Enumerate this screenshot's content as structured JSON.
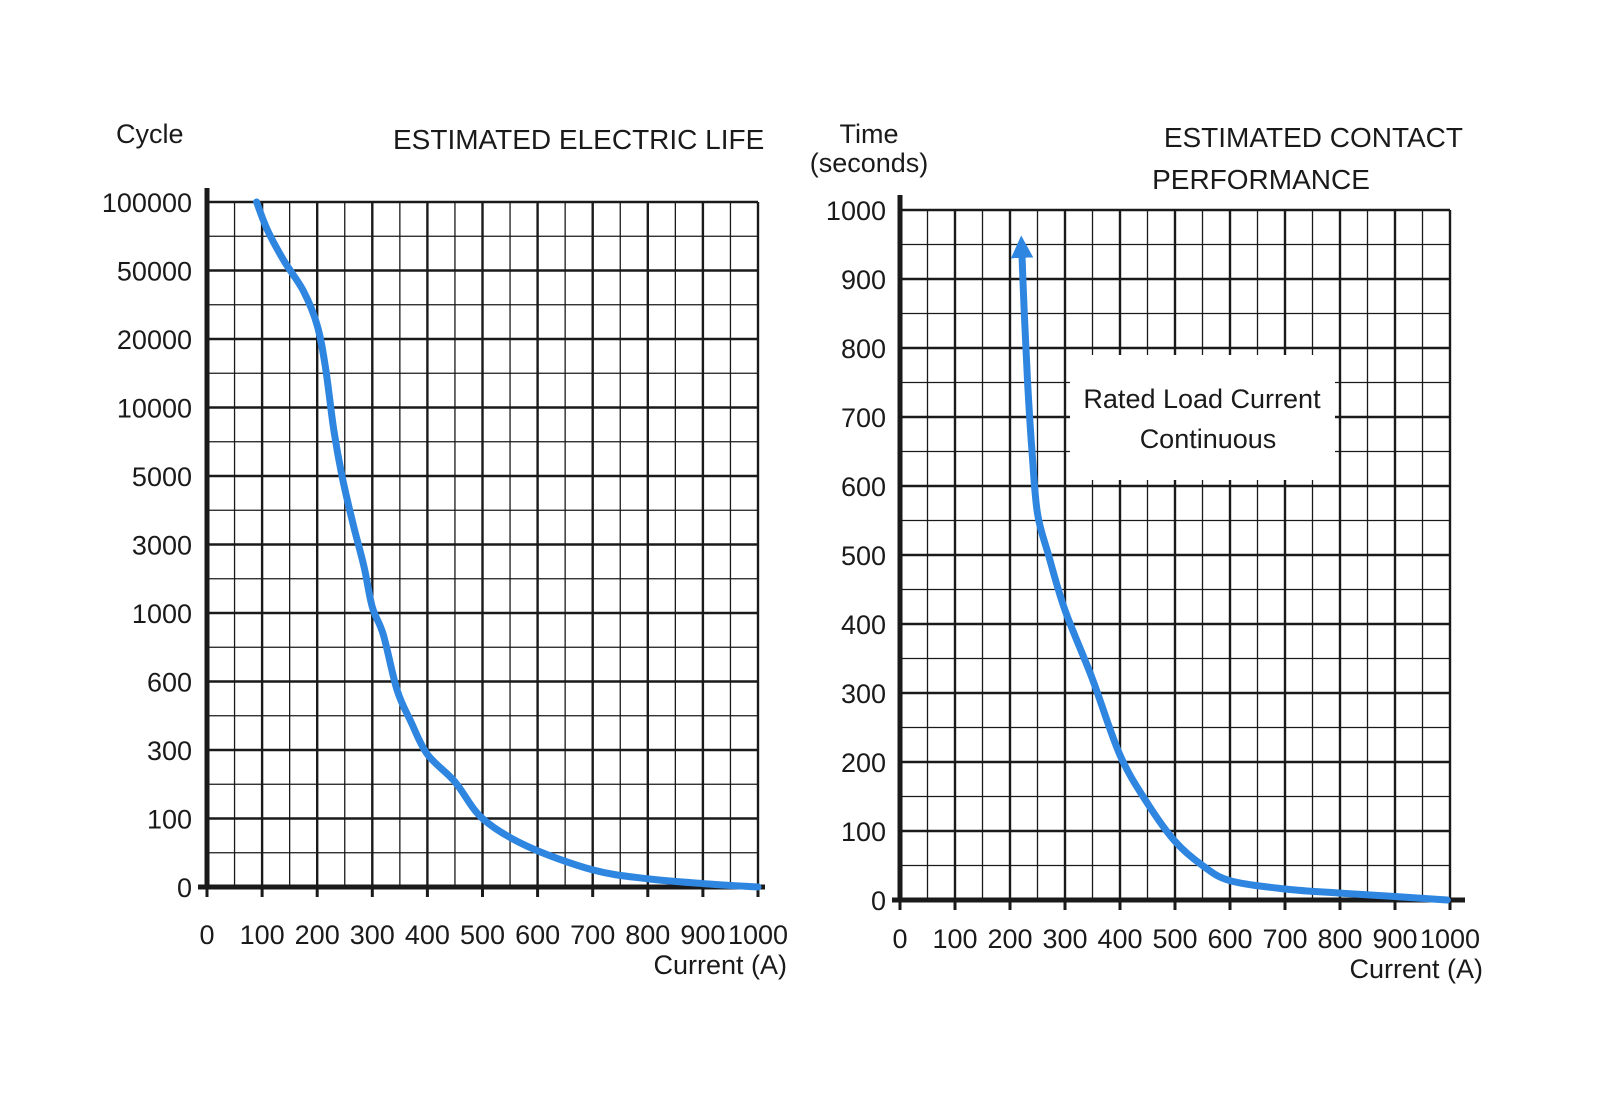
{
  "colors": {
    "curve": "#2f86e0",
    "grid": "#1a1a1a",
    "background": "#ffffff"
  },
  "chart_data": [
    {
      "type": "line",
      "title": "ESTIMATED ELECTRIC LIFE",
      "ylabel": "Cycle",
      "xlabel": "Current (A)",
      "x_ticks": [
        "0",
        "100",
        "200",
        "300",
        "400",
        "500",
        "600",
        "700",
        "800",
        "900",
        "1000"
      ],
      "y_ticks": [
        "0",
        "100",
        "300",
        "600",
        "1000",
        "3000",
        "5000",
        "10000",
        "20000",
        "50000",
        "100000"
      ],
      "xlim": [
        0,
        1000
      ],
      "y_scale": "categorical (non-uniform, evenly spaced tick labels)",
      "grid": true,
      "series": [
        {
          "values": [
            {
              "x": 90,
              "y": 100000
            },
            {
              "x": 110,
              "y": 75000
            },
            {
              "x": 140,
              "y": 55000
            },
            {
              "x": 175,
              "y": 38000
            },
            {
              "x": 200,
              "y": 24000
            },
            {
              "x": 215,
              "y": 15000
            },
            {
              "x": 230,
              "y": 8000
            },
            {
              "x": 245,
              "y": 5000
            },
            {
              "x": 265,
              "y": 3500
            },
            {
              "x": 285,
              "y": 2100
            },
            {
              "x": 300,
              "y": 1100
            },
            {
              "x": 320,
              "y": 850
            },
            {
              "x": 345,
              "y": 550
            },
            {
              "x": 370,
              "y": 400
            },
            {
              "x": 400,
              "y": 280
            },
            {
              "x": 450,
              "y": 180
            },
            {
              "x": 500,
              "y": 100
            },
            {
              "x": 580,
              "y": 60
            },
            {
              "x": 700,
              "y": 25
            },
            {
              "x": 800,
              "y": 12
            },
            {
              "x": 900,
              "y": 5
            },
            {
              "x": 1000,
              "y": 0
            }
          ]
        }
      ]
    },
    {
      "type": "line",
      "title": "ESTIMATED CONTACT\nPERFORMANCE",
      "title_lines": [
        "ESTIMATED CONTACT",
        "PERFORMANCE"
      ],
      "ylabel": "Time\n(seconds)",
      "ylabel_lines": [
        "Time",
        "(seconds)"
      ],
      "xlabel": "Current (A)",
      "x_ticks": [
        "0",
        "100",
        "200",
        "300",
        "400",
        "500",
        "600",
        "700",
        "800",
        "900",
        "1000"
      ],
      "y_ticks": [
        "0",
        "100",
        "200",
        "300",
        "400",
        "500",
        "600",
        "700",
        "800",
        "900",
        "1000"
      ],
      "xlim": [
        0,
        1000
      ],
      "ylim": [
        0,
        1000
      ],
      "grid": true,
      "annotation_lines": [
        "Rated Load Current",
        "Continuous"
      ],
      "series": [
        {
          "values": [
            {
              "x": 995,
              "y": 0
            },
            {
              "x": 900,
              "y": 5
            },
            {
              "x": 800,
              "y": 10
            },
            {
              "x": 700,
              "y": 16
            },
            {
              "x": 600,
              "y": 28
            },
            {
              "x": 550,
              "y": 50
            },
            {
              "x": 500,
              "y": 85
            },
            {
              "x": 450,
              "y": 140
            },
            {
              "x": 400,
              "y": 210
            },
            {
              "x": 350,
              "y": 320
            },
            {
              "x": 300,
              "y": 420
            },
            {
              "x": 270,
              "y": 500
            },
            {
              "x": 250,
              "y": 560
            },
            {
              "x": 240,
              "y": 650
            },
            {
              "x": 232,
              "y": 750
            },
            {
              "x": 226,
              "y": 850
            },
            {
              "x": 221,
              "y": 950
            }
          ],
          "arrow_end": true
        }
      ]
    }
  ]
}
